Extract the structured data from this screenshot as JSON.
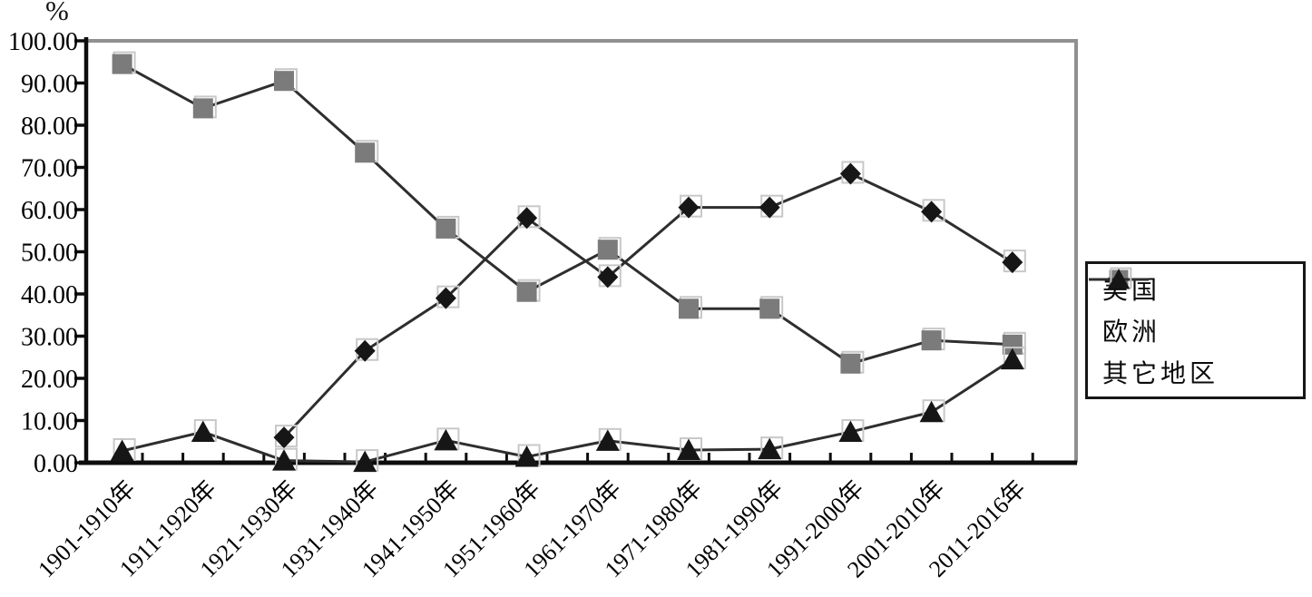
{
  "chart_data": {
    "type": "line",
    "title": "",
    "xlabel": "",
    "ylabel": "%",
    "ylim": [
      0,
      100
    ],
    "ytick_step": 10,
    "ytick_labels": [
      "0.00",
      "10.00",
      "20.00",
      "30.00",
      "40.00",
      "50.00",
      "60.00",
      "70.00",
      "80.00",
      "90.00",
      "100.00"
    ],
    "grid": false,
    "legend_position": "right",
    "categories": [
      "1901-1910年",
      "1911-1920年",
      "1921-1930年",
      "1931-1940年",
      "1941-1950年",
      "1951-1960年",
      "1961-1970年",
      "1971-1980年",
      "1981-1990年",
      "1991-2000年",
      "2001-2010年",
      "2011-2016年"
    ],
    "series": [
      {
        "name": "美国",
        "marker": "diamond",
        "marker_color": "#161616",
        "values": [
          null,
          null,
          6.0,
          26.5,
          39.0,
          58.0,
          44.0,
          60.5,
          60.5,
          68.5,
          59.5,
          47.5
        ]
      },
      {
        "name": "欧洲",
        "marker": "square",
        "marker_color": "#7b7b7b",
        "values": [
          94.5,
          84.0,
          90.5,
          73.5,
          55.5,
          40.5,
          50.5,
          36.5,
          36.5,
          23.5,
          29.0,
          28.0
        ]
      },
      {
        "name": "其它地区",
        "marker": "triangle",
        "marker_color": "#161616",
        "values": [
          2.8,
          7.3,
          0.5,
          0.2,
          5.3,
          1.4,
          5.2,
          3.0,
          3.2,
          7.3,
          12.0,
          24.5
        ]
      }
    ]
  },
  "colors": {
    "series_line": "#2e2e2e",
    "axis_black": "#0d0d0d",
    "frame_gray": "#909090",
    "marker_halo": "#c8c8c8",
    "text": "#000000"
  }
}
